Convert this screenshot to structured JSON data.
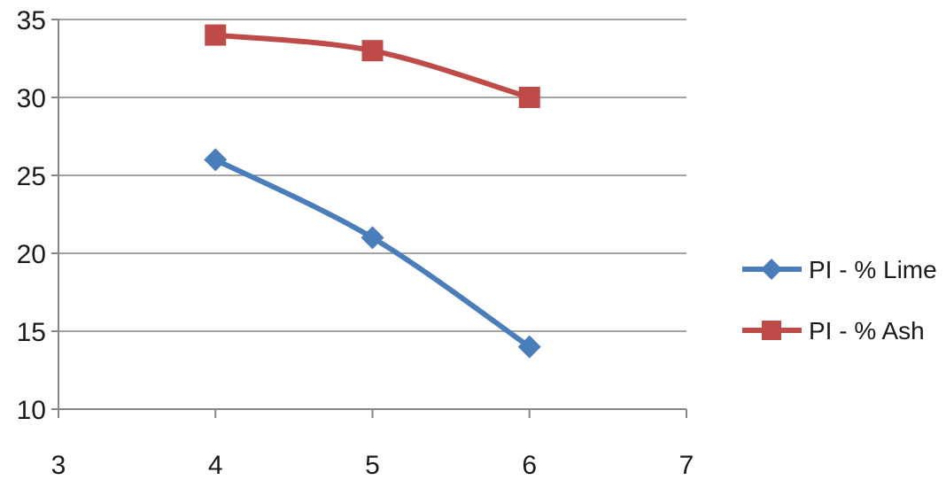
{
  "chart_data": {
    "type": "line",
    "x_ticks": [
      3,
      4,
      5,
      6,
      7
    ],
    "y_ticks": [
      10,
      15,
      20,
      25,
      30,
      35
    ],
    "xlim": [
      3,
      7
    ],
    "ylim": [
      10,
      35
    ],
    "grid": "horizontal",
    "legend_position": "right",
    "series": [
      {
        "name": "PI - % Lime",
        "color": "#4a7ebb",
        "marker": "diamond",
        "points": [
          {
            "x": 4,
            "y": 26
          },
          {
            "x": 5,
            "y": 21
          },
          {
            "x": 6,
            "y": 14
          }
        ]
      },
      {
        "name": "PI - % Ash",
        "color": "#be4b48",
        "marker": "square",
        "points": [
          {
            "x": 4,
            "y": 34
          },
          {
            "x": 5,
            "y": 33
          },
          {
            "x": 6,
            "y": 30
          }
        ]
      }
    ]
  }
}
